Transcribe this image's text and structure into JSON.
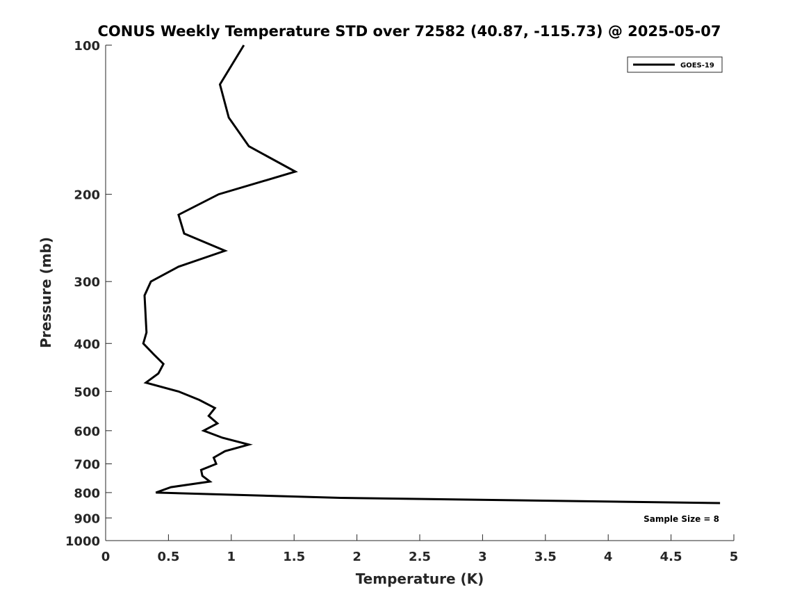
{
  "chart_data": {
    "type": "line",
    "title": "CONUS Weekly Temperature STD over 72582 (40.87, -115.73) @ 2025-05-07",
    "xlabel": "Temperature (K)",
    "ylabel": "Pressure (mb)",
    "xlim": [
      0,
      5
    ],
    "ylim": [
      100,
      1000
    ],
    "yscale": "log",
    "yreversed": true,
    "xticks": [
      "0",
      "0.5",
      "1",
      "1.5",
      "2",
      "2.5",
      "3",
      "3.5",
      "4",
      "4.5",
      "5"
    ],
    "yticks": [
      "100",
      "200",
      "300",
      "400",
      "500",
      "600",
      "700",
      "800",
      "900",
      "1000"
    ],
    "grid": false,
    "legend": {
      "placement": "top-right",
      "entries": [
        "GOES-19"
      ]
    },
    "annotation": "Sample Size = 8",
    "series": [
      {
        "name": "GOES-19",
        "color": "#000000",
        "x": [
          1.1,
          0.91,
          0.98,
          1.14,
          1.51,
          0.9,
          0.58,
          0.625,
          0.95,
          0.58,
          0.36,
          0.31,
          0.315,
          0.32,
          0.325,
          0.3,
          0.38,
          0.46,
          0.42,
          0.32,
          0.58,
          0.745,
          0.87,
          0.82,
          0.89,
          0.78,
          0.93,
          1.14,
          0.95,
          0.86,
          0.88,
          0.76,
          0.77,
          0.83,
          0.52,
          0.4,
          1.87,
          4.89
        ],
        "y": [
          100,
          120,
          140,
          160,
          180,
          200,
          220,
          240,
          260,
          280,
          300,
          320,
          340,
          360,
          380,
          400,
          420,
          440,
          460,
          480,
          500,
          520,
          540,
          560,
          580,
          600,
          620,
          640,
          660,
          680,
          700,
          720,
          740,
          760,
          780,
          800,
          820,
          840
        ]
      }
    ]
  }
}
